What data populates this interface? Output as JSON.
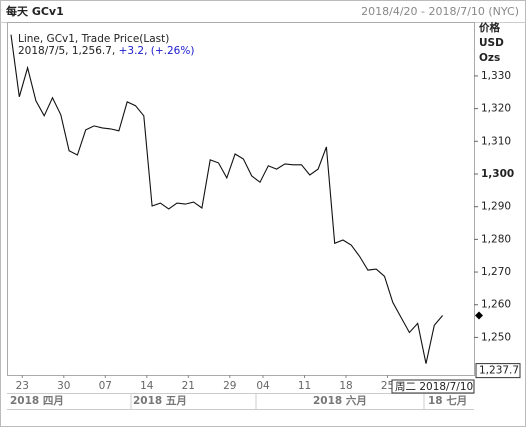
{
  "chart_data": {
    "type": "line",
    "title": "每天 GCv1",
    "date_range": "2018/4/20 - 2018/7/10 (NYC)",
    "legend": {
      "series_label": "Line, GCv1, Trade Price(Last)",
      "point_label": "2018/7/5, 1,256.7,",
      "change_label": "+3.2, (+.26%)",
      "change_color": "#1a1acc"
    },
    "y_axis_labels": [
      "价格",
      "USD",
      "Ozs"
    ],
    "categories": [
      null,
      "23",
      null,
      null,
      null,
      null,
      "30",
      null,
      null,
      null,
      null,
      "07",
      null,
      null,
      null,
      null,
      "14",
      null,
      null,
      null,
      null,
      "21",
      null,
      null,
      null,
      null,
      "29",
      null,
      null,
      null,
      "04",
      null,
      null,
      null,
      null,
      "11",
      null,
      null,
      null,
      null,
      "18",
      null,
      null,
      null,
      null,
      "25",
      null,
      null,
      null,
      null,
      null,
      null,
      null
    ],
    "month_labels": [
      "2018 四月",
      "2018 五月",
      "2018 六月",
      "18 七月"
    ],
    "series": [
      {
        "name": "GCv1",
        "color": "#111111",
        "values": [
          1342.6,
          1323.6,
          1332.5,
          1322.4,
          1317.8,
          1323.3,
          1318.1,
          1307.1,
          1305.8,
          1313.5,
          1314.7,
          1314.1,
          1313.8,
          1313.2,
          1322.1,
          1320.9,
          1317.8,
          1290.2,
          1291.1,
          1289.3,
          1291.1,
          1290.8,
          1291.4,
          1289.6,
          1304.3,
          1303.4,
          1298.8,
          1306.1,
          1304.6,
          1299.4,
          1297.5,
          1302.5,
          1301.5,
          1303.1,
          1302.8,
          1302.8,
          1299.7,
          1301.5,
          1308.3,
          1278.8,
          1279.8,
          1278.2,
          1274.8,
          1270.6,
          1270.9,
          1268.7,
          1260.7,
          1256.1,
          1251.5,
          1254.3,
          1242.0,
          1253.7,
          1256.7
        ]
      }
    ],
    "last_value": 1256.7,
    "crosshair": {
      "date": "周二 2018/7/10",
      "value": {
        "value": 1237.7,
        "label": "1,237.7"
      }
    },
    "ylim": [
      1238.5,
      1346.5
    ],
    "yticks": [
      {
        "value": 1250,
        "label": "1,250"
      },
      {
        "value": 1260,
        "label": "1,260"
      },
      {
        "value": 1270,
        "label": "1,270"
      },
      {
        "value": 1280,
        "label": "1,280"
      },
      {
        "value": 1290,
        "label": "1,290"
      },
      {
        "value": 1300,
        "label": "1,300",
        "bold": true
      },
      {
        "value": 1310,
        "label": "1,310"
      },
      {
        "value": 1320,
        "label": "1,320"
      },
      {
        "value": 1330,
        "label": "1,330"
      }
    ],
    "grid": false
  }
}
